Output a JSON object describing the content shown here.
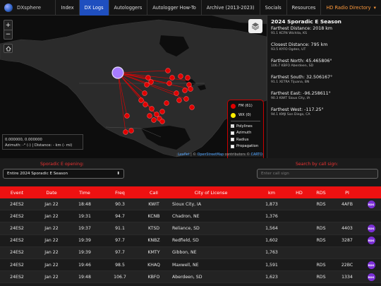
{
  "nav": {
    "brand": "DXsphere",
    "items": [
      {
        "label": "Index",
        "active": false
      },
      {
        "label": "DX Logs",
        "active": true
      },
      {
        "label": "Autologgers",
        "active": false
      },
      {
        "label": "Autologger How-To",
        "active": false
      },
      {
        "label": "Archive (2013-2023)",
        "active": false
      },
      {
        "label": "Socials",
        "active": false
      },
      {
        "label": "Resources",
        "active": false
      },
      {
        "label": "HD Radio Directory",
        "active": false
      }
    ]
  },
  "map": {
    "zoom_in": "+",
    "zoom_out": "−",
    "legend": {
      "fm": "FM (61)",
      "wx": "WX (0)",
      "polylines": "Polylines",
      "azimuth": "Azimuth",
      "radius": "Radius",
      "propagation": "Propagation"
    },
    "coords_line1": "0.000000, 0.000000",
    "coords_line2": "Azimuth: -° (-) | Distance: - km (- mi)",
    "attribution_leaflet": "Leaflet",
    "attribution_mid": " | © ",
    "attribution_osm": "OpenStreetMap",
    "attribution_contrib": " contributors © ",
    "attribution_carto": "CARTO"
  },
  "stats": {
    "title": "2024 Sporadic E Season",
    "farthest_distance": "Farthest Distance: 2018 km",
    "farthest_distance_sub": "91.1 KCFN Wichita, KS",
    "closest_distance": "Closest Distance: 795 km",
    "closest_distance_sub": "93.5 KYFO Ogden, UT",
    "farthest_north": "Farthest North: 45.465806°",
    "farthest_north_sub": "106.7 KBFO Aberdeen, SD",
    "farthest_south": "Farthest South: 32.506167°",
    "farthest_south_sub": "91.1 XETRA Tijuana, BN",
    "farthest_east": "Farthest East: -96.258611°",
    "farthest_east_sub": "90.3 KWIT Sioux City, IA",
    "farthest_west": "Farthest West: -117.25°",
    "farthest_west_sub": "94.1 KMJI San Diego, CA"
  },
  "filters": {
    "opening_label": "Sporadic E opening:",
    "opening_value": "Entire 2024 Sporadic E Season",
    "search_label": "Search by call sign:",
    "search_placeholder": "Enter call sign"
  },
  "table": {
    "headers": [
      "Event",
      "Date",
      "Time",
      "Freq",
      "Call",
      "City of License",
      "km",
      "HD",
      "RDS",
      "PI",
      ""
    ],
    "rdsbadge": "RDS",
    "rows": [
      {
        "event": "24ES2",
        "date": "Jan 22",
        "time": "18:48",
        "freq": "90.3",
        "call": "KWIT",
        "city": "Sioux City, IA",
        "km": "1,873",
        "hd": "",
        "rds": "RDS",
        "pi": "4AFB",
        "badge": true
      },
      {
        "event": "24ES2",
        "date": "Jan 22",
        "time": "19:31",
        "freq": "94.7",
        "call": "KCNB",
        "city": "Chadron, NE",
        "km": "1,376",
        "hd": "",
        "rds": "",
        "pi": "",
        "badge": false
      },
      {
        "event": "24ES2",
        "date": "Jan 22",
        "time": "19:37",
        "freq": "91.1",
        "call": "KTSD",
        "city": "Reliance, SD",
        "km": "1,564",
        "hd": "",
        "rds": "RDS",
        "pi": "4403",
        "badge": true
      },
      {
        "event": "24ES2",
        "date": "Jan 22",
        "time": "19:39",
        "freq": "97.7",
        "call": "KNBZ",
        "city": "Redfield, SD",
        "km": "1,602",
        "hd": "",
        "rds": "RDS",
        "pi": "3287",
        "badge": true
      },
      {
        "event": "24ES2",
        "date": "Jan 22",
        "time": "19:39",
        "freq": "97.7",
        "call": "KMTY",
        "city": "Gibbon, NE",
        "km": "1,763",
        "hd": "",
        "rds": "",
        "pi": "",
        "badge": false
      },
      {
        "event": "24ES2",
        "date": "Jan 22",
        "time": "19:46",
        "freq": "98.5",
        "call": "KHAQ",
        "city": "Maxwell, NE",
        "km": "1,591",
        "hd": "",
        "rds": "RDS",
        "pi": "22BC",
        "badge": true
      },
      {
        "event": "24ES2",
        "date": "Jan 22",
        "time": "19:48",
        "freq": "106.7",
        "call": "KBFO",
        "city": "Aberdeen, SD",
        "km": "1,623",
        "hd": "",
        "rds": "RDS",
        "pi": "1334",
        "badge": true
      }
    ]
  },
  "colors": {
    "accent_red": "#ee1111",
    "active_nav": "#1f4fbf",
    "rds_badge": "#7b2fd6",
    "origin_marker": "#a77bff"
  }
}
